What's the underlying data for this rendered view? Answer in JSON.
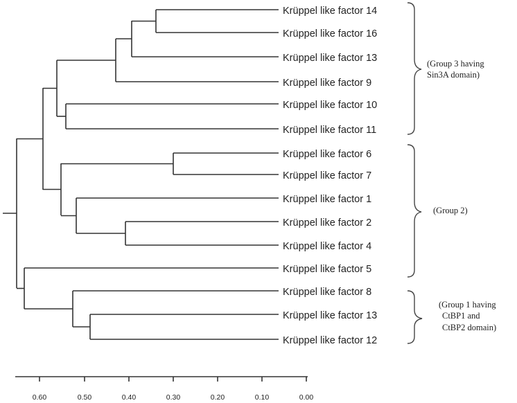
{
  "dendrogram": {
    "leaves": [
      "Krüppel like factor 14",
      "Krüppel like factor 16",
      "Krüppel like factor 13",
      "Krüppel like factor 9",
      "Krüppel like factor 10",
      "Krüppel like factor 11",
      "Krüppel like factor 6",
      "Krüppel like factor 7",
      "Krüppel like factor 1",
      "Krüppel like factor 2",
      "Krüppel like factor 4",
      "Krüppel like factor 5",
      "Krüppel like factor 8",
      "Krüppel like factor 13",
      "Krüppel like factor 12"
    ],
    "axis_ticks": [
      "0.60",
      "0.50",
      "0.40",
      "0.30",
      "0.20",
      "0.10",
      "0.00"
    ],
    "groups": [
      {
        "lines": [
          "(Group 3 having",
          "Sin3A domain)"
        ]
      },
      {
        "lines": [
          "(Group 2)"
        ]
      },
      {
        "lines": [
          "(Group 1 having",
          "CtBP1 and",
          "CtBP2 domain)"
        ]
      }
    ]
  }
}
